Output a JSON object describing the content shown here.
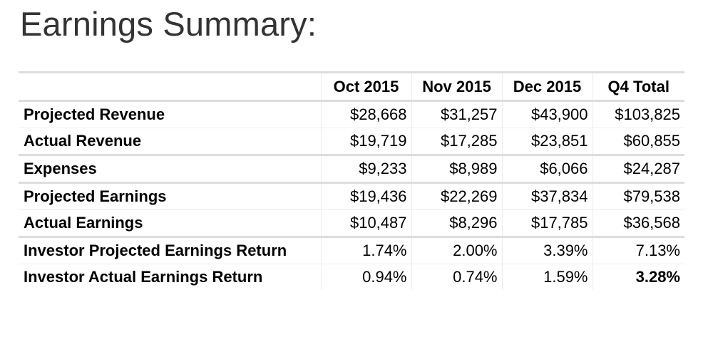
{
  "title": "Earnings Summary:",
  "table": {
    "columns": [
      "",
      "Oct 2015",
      "Nov 2015",
      "Dec 2015",
      "Q4 Total"
    ],
    "rows": [
      {
        "label": "Projected Revenue",
        "values": [
          "$28,668",
          "$31,257",
          "$43,900",
          "$103,825"
        ]
      },
      {
        "label": "Actual Revenue",
        "values": [
          "$19,719",
          "$17,285",
          "$23,851",
          "$60,855"
        ]
      },
      {
        "label": "Expenses",
        "values": [
          "$9,233",
          "$8,989",
          "$6,066",
          "$24,287"
        ]
      },
      {
        "label": "Projected Earnings",
        "values": [
          "$19,436",
          "$22,269",
          "$37,834",
          "$79,538"
        ]
      },
      {
        "label": "Actual Earnings",
        "values": [
          "$10,487",
          "$8,296",
          "$17,785",
          "$36,568"
        ]
      },
      {
        "label": "Investor Projected Earnings Return",
        "values": [
          "1.74%",
          "2.00%",
          "3.39%",
          "7.13%"
        ]
      },
      {
        "label": "Investor Actual Earnings Return",
        "values": [
          "0.94%",
          "0.74%",
          "1.59%",
          "3.28%"
        ]
      }
    ]
  }
}
